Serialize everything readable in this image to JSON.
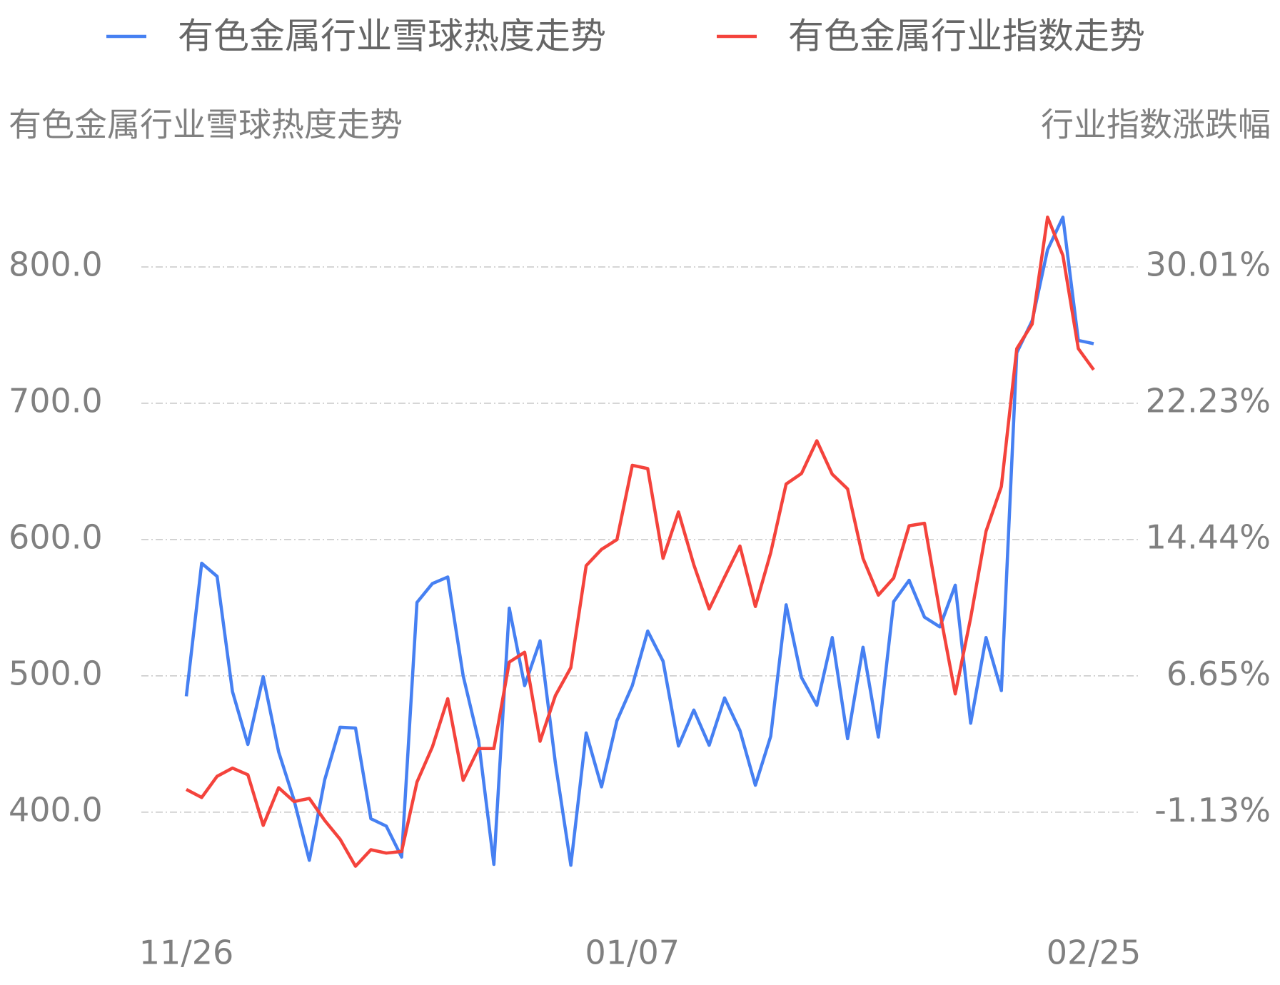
{
  "chart_data": {
    "type": "line",
    "categories": [
      "11/26",
      null,
      null,
      null,
      null,
      null,
      null,
      null,
      null,
      null,
      null,
      null,
      null,
      null,
      null,
      null,
      null,
      null,
      null,
      null,
      null,
      null,
      null,
      null,
      null,
      null,
      null,
      null,
      null,
      "01/07",
      null,
      null,
      null,
      null,
      null,
      null,
      null,
      null,
      null,
      null,
      null,
      null,
      null,
      null,
      null,
      null,
      null,
      null,
      null,
      null,
      null,
      null,
      null,
      null,
      null,
      null,
      null,
      null,
      null,
      "02/25"
    ],
    "y_label": "有色金属行业雪球热度走势",
    "y2_label": "行业指数涨跌幅",
    "series": [
      {
        "name": "有色金属行业雪球热度走势",
        "color": "#4680f2",
        "axis": "y",
        "values": [
          485.0,
          582.6,
          573.0,
          488.6,
          449.7,
          499.4,
          444.3,
          409.0,
          364.7,
          423.9,
          462.3,
          461.7,
          395.2,
          389.8,
          367.1,
          553.9,
          567.7,
          572.5,
          500.0,
          452.7,
          361.7,
          549.7,
          492.8,
          525.7,
          435.9,
          361.1,
          458.1,
          418.6,
          467.1,
          492.8,
          532.9,
          510.8,
          448.5,
          474.9,
          449.1,
          483.8,
          459.9,
          419.8,
          455.7,
          552.1,
          498.8,
          478.4,
          528.1,
          453.9,
          521.0,
          455.1,
          554.5,
          570.1,
          543.1,
          535.9,
          566.5,
          465.3,
          528.1,
          489.2,
          737.1,
          760.5,
          812.6,
          836.5,
          746.1,
          743.7
        ]
      },
      {
        "name": "有色金属行业指数走势",
        "color": "#f4433c",
        "axis": "y2",
        "values": [
          0.19,
          -0.27,
          0.94,
          1.41,
          1.03,
          -1.86,
          0.29,
          -0.5,
          -0.32,
          -1.58,
          -2.65,
          -4.19,
          -3.25,
          -3.44,
          -3.35,
          0.61,
          2.62,
          5.37,
          0.71,
          2.52,
          2.52,
          7.46,
          8.02,
          2.94,
          5.55,
          7.14,
          12.96,
          13.89,
          14.45,
          18.69,
          18.5,
          13.38,
          16.03,
          13.01,
          10.49,
          12.31,
          14.08,
          10.63,
          13.7,
          17.62,
          18.22,
          20.09,
          18.18,
          17.34,
          13.38,
          11.28,
          12.26,
          15.24,
          15.38,
          10.3,
          5.64,
          9.98,
          14.92,
          17.48,
          25.35,
          26.75,
          32.85,
          30.66,
          25.35,
          24.14
        ]
      }
    ],
    "ylim": [
      337.1,
      858.1
    ],
    "yticks": [
      {
        "value": 400,
        "label": "400.0"
      },
      {
        "value": 500,
        "label": "500.0"
      },
      {
        "value": 600,
        "label": "600.0"
      },
      {
        "value": 700,
        "label": "700.0"
      },
      {
        "value": 800,
        "label": "800.0"
      }
    ],
    "y2lim": [
      -6.0,
      34.53
    ],
    "y2ticks": [
      {
        "value": -1.13,
        "label": "-1.13%"
      },
      {
        "value": 6.65,
        "label": "6.65%"
      },
      {
        "value": 14.44,
        "label": "14.44%"
      },
      {
        "value": 22.23,
        "label": "22.23%"
      },
      {
        "value": 30.01,
        "label": "30.01%"
      }
    ],
    "grid": true
  }
}
